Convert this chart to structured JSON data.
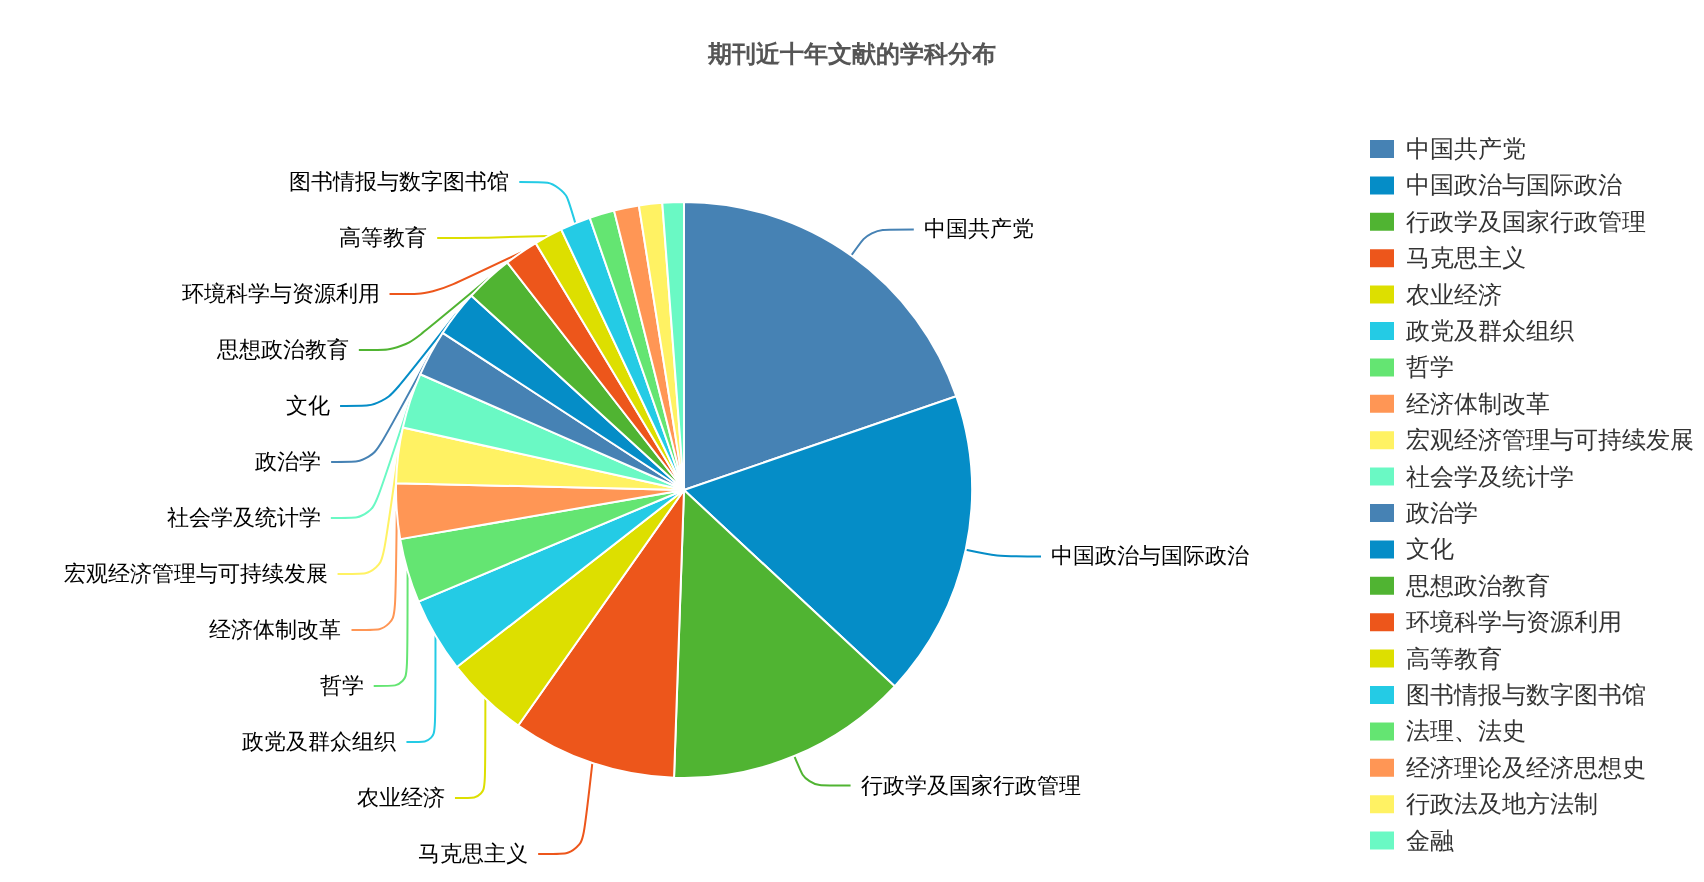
{
  "chart_data": {
    "type": "pie",
    "title": "期刊近十年文献的学科分布",
    "categories": [
      "中国共产党",
      "中国政治与国际政治",
      "行政学及国家行政管理",
      "马克思主义",
      "农业经济",
      "政党及群众组织",
      "哲学",
      "经济体制改革",
      "宏观经济管理与可持续发展",
      "社会学及统计学",
      "政治学",
      "文化",
      "思想政治教育",
      "环境科学与资源利用",
      "高等教育",
      "图书情报与数字图书馆",
      "法理、法史",
      "经济理论及经济思想史",
      "行政法及地方法制",
      "金融"
    ],
    "values": [
      19.7,
      17.2,
      13.6,
      9.2,
      4.7,
      4.2,
      3.6,
      3.1,
      3.1,
      3.1,
      2.6,
      2.6,
      2.7,
      1.9,
      1.6,
      1.7,
      1.4,
      1.4,
      1.3,
      1.2
    ],
    "colors": [
      "#4682b4",
      "#058dc7",
      "#50b432",
      "#ed561b",
      "#dddf00",
      "#24cbe5",
      "#64e572",
      "#ff9655",
      "#fff263",
      "#6af9c4",
      "#4682b4",
      "#058dc7",
      "#50b432",
      "#ed561b",
      "#dddf00",
      "#24cbe5",
      "#64e572",
      "#ff9655",
      "#fff263",
      "#6af9c4"
    ],
    "legend": "right"
  }
}
